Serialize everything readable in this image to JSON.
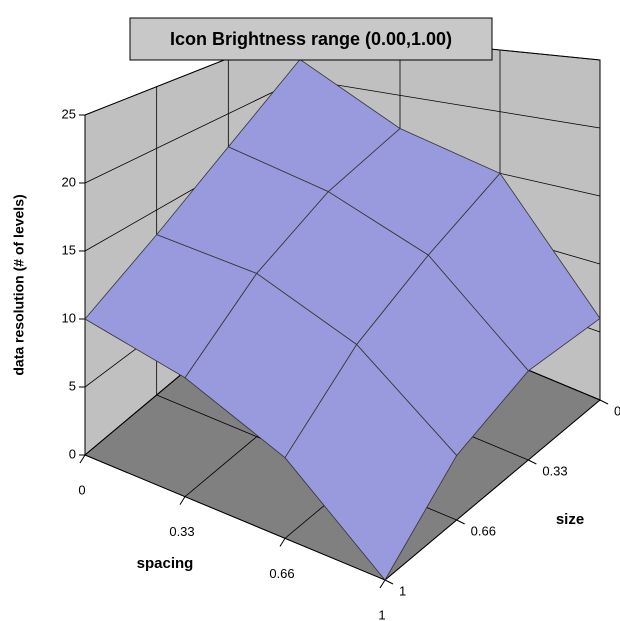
{
  "chart_data": {
    "type": "surface",
    "title": "Icon Brightness range (0.00,1.00)",
    "z_label": "data resolution (# of levels)",
    "x_label": "spacing",
    "y_label": "size",
    "x": [
      "0",
      "0.33",
      "0.66",
      "1"
    ],
    "y": [
      "0",
      "0.33",
      "0.66",
      "1"
    ],
    "values": [
      [
        22,
        17,
        13,
        10
      ],
      [
        17,
        15,
        12,
        8
      ],
      [
        15,
        12,
        9,
        5
      ],
      [
        6,
        6,
        4,
        0
      ]
    ],
    "zlim": [
      0,
      25
    ],
    "zticks": [
      0,
      5,
      10,
      15,
      20,
      25
    ],
    "color": "#9999dd",
    "wall_color": "#c0c0c0",
    "floor_color": "#808080",
    "grid": true
  }
}
